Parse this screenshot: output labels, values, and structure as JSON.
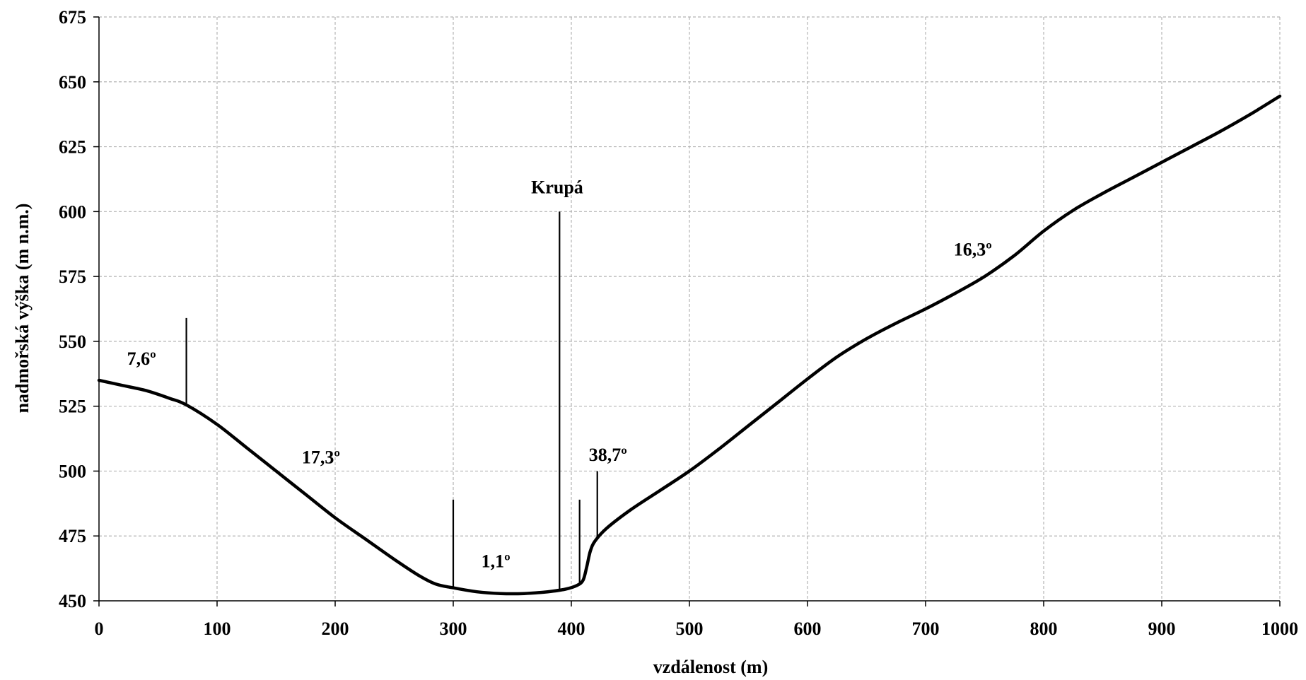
{
  "chart_data": {
    "type": "line",
    "title": "",
    "xlabel": "vzdálenost (m)",
    "ylabel": "nadmořská výška (m n.m.)",
    "xlim": [
      0,
      1000
    ],
    "ylim": [
      450,
      675
    ],
    "xticks": [
      0,
      100,
      200,
      300,
      400,
      500,
      600,
      700,
      800,
      900,
      1000
    ],
    "yticks": [
      450,
      475,
      500,
      525,
      550,
      575,
      600,
      625,
      650,
      675
    ],
    "grid": true,
    "series": [
      {
        "x": [
          0,
          20,
          40,
          60,
          74,
          100,
          125,
          150,
          175,
          200,
          225,
          250,
          270,
          285,
          300,
          320,
          340,
          360,
          380,
          395,
          405,
          410,
          413,
          416,
          420,
          430,
          450,
          475,
          500,
          525,
          550,
          575,
          600,
          625,
          650,
          675,
          700,
          725,
          750,
          775,
          800,
          825,
          850,
          875,
          900,
          925,
          950,
          975,
          1000
        ],
        "y": [
          535,
          533,
          531,
          528,
          525.5,
          518,
          509,
          500,
          491,
          482,
          474,
          466,
          460,
          456.5,
          455,
          453.5,
          452.8,
          452.8,
          453.5,
          454.5,
          456,
          458,
          463,
          469,
          473,
          478,
          485,
          492.5,
          500,
          508.5,
          517.5,
          526.5,
          535.5,
          544,
          551,
          557,
          562.5,
          568.5,
          575,
          583,
          592.5,
          600.5,
          607,
          613,
          619,
          625,
          631,
          637.5,
          644.5
        ]
      }
    ],
    "markers": [
      {
        "x": 74,
        "y_top": 559,
        "y_bottom": 525.5
      },
      {
        "x": 300,
        "y_top": 489,
        "y_bottom": 455.5
      },
      {
        "x": 390,
        "y_top": 600,
        "y_bottom": 454.5
      },
      {
        "x": 407,
        "y_top": 489,
        "y_bottom": 457
      },
      {
        "x": 422,
        "y_top": 500,
        "y_bottom": 474
      }
    ],
    "annotations": [
      {
        "text": "7,6º",
        "x": 36,
        "y": 541
      },
      {
        "text": "17,3º",
        "x": 188,
        "y": 503
      },
      {
        "text": "1,1º",
        "x": 336,
        "y": 463
      },
      {
        "text": "Krupá",
        "x": 388,
        "y": 607
      },
      {
        "text": "38,7º",
        "x": 431,
        "y": 504
      },
      {
        "text": "16,3º",
        "x": 740,
        "y": 583
      }
    ]
  }
}
